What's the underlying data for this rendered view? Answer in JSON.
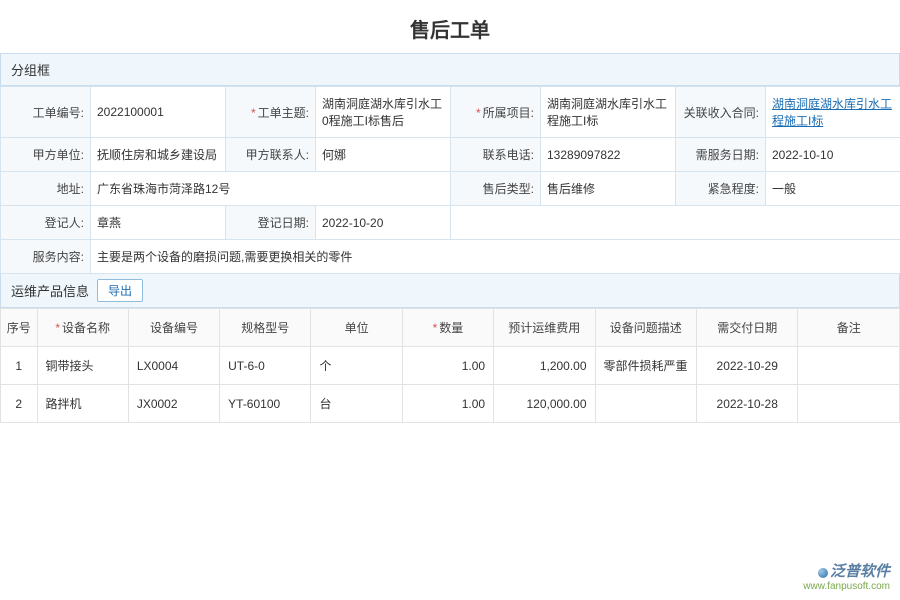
{
  "page": {
    "title": "售后工单"
  },
  "group": {
    "label": "分组框"
  },
  "form": {
    "order_no": {
      "label": "工单编号:",
      "value": "2022100001"
    },
    "subject": {
      "label": "工单主题:",
      "value": "湖南洞庭湖水库引水工0程施工I标售后",
      "required": true
    },
    "project": {
      "label": "所属项目:",
      "value": "湖南洞庭湖水库引水工程施工I标",
      "required": true
    },
    "contract": {
      "label": "关联收入合同:",
      "link_text": "湖南洞庭湖水库引水工程施工I标"
    },
    "party_a": {
      "label": "甲方单位:",
      "value": "抚顺住房和城乡建设局"
    },
    "party_a_contact": {
      "label": "甲方联系人:",
      "value": "何娜"
    },
    "phone": {
      "label": "联系电话:",
      "value": "13289097822"
    },
    "service_date": {
      "label": "需服务日期:",
      "value": "2022-10-10"
    },
    "address": {
      "label": "地址:",
      "value": "广东省珠海市菏泽路12号"
    },
    "after_type": {
      "label": "售后类型:",
      "value": "售后维修"
    },
    "urgency": {
      "label": "紧急程度:",
      "value": "一般"
    },
    "registrar": {
      "label": "登记人:",
      "value": "章燕"
    },
    "reg_date": {
      "label": "登记日期:",
      "value": "2022-10-20"
    },
    "content": {
      "label": "服务内容:",
      "value": "主要是两个设备的磨损问题,需要更换相关的零件"
    }
  },
  "product_section": {
    "title": "运维产品信息",
    "export_label": "导出"
  },
  "table": {
    "headers": {
      "seq": "序号",
      "name": "设备名称",
      "code": "设备编号",
      "spec": "规格型号",
      "unit": "单位",
      "qty": "数量",
      "cost": "预计运维费用",
      "issue": "设备问题描述",
      "due": "需交付日期",
      "remark": "备注"
    },
    "rows": [
      {
        "seq": "1",
        "name": "铜带接头",
        "code": "LX0004",
        "spec": "UT-6-0",
        "unit": "个",
        "qty": "1.00",
        "cost": "1,200.00",
        "issue": "零部件损耗严重",
        "due": "2022-10-29",
        "remark": ""
      },
      {
        "seq": "2",
        "name": "路拌机",
        "code": "JX0002",
        "spec": "YT-60100",
        "unit": "台",
        "qty": "1.00",
        "cost": "120,000.00",
        "issue": "",
        "due": "2022-10-28",
        "remark": ""
      }
    ]
  },
  "colors": {
    "header_bg": "#f0f7fc",
    "border": "#c8dced",
    "cell_border": "#d6e4ef",
    "label_bg": "#f5f9fc",
    "link": "#1b6db3",
    "required": "#d9534f"
  },
  "watermark": {
    "brand": "泛普软件",
    "url": "www.fanpusoft.com"
  }
}
